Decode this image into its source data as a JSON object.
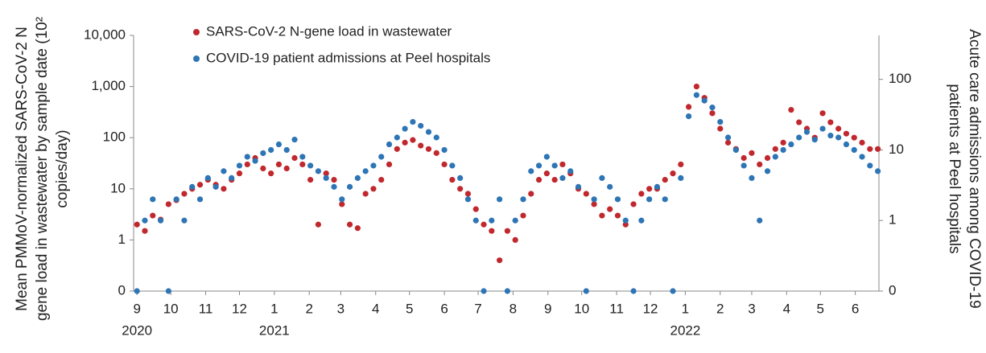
{
  "chart_data": {
    "type": "scatter",
    "ylabel": [
      "Mean PMMoV-normalized SARS-CoV-2 N",
      "gene load in wastewater by sample date (10²",
      "copies/day)"
    ],
    "y2label": [
      "Acute care admissions among COVID-19",
      "patients at Peel hospitals"
    ],
    "log_scale": true,
    "grid": false,
    "legend": "upper left",
    "xlim": [
      "2020-08-29",
      "2022-06-22"
    ],
    "xticks": [
      {
        "value": "2020-09-01",
        "label": "9"
      },
      {
        "value": "2020-10-01",
        "label": "10"
      },
      {
        "value": "2020-11-01",
        "label": "11"
      },
      {
        "value": "2020-12-01",
        "label": "12"
      },
      {
        "value": "2021-01-01",
        "label": "1"
      },
      {
        "value": "2021-02-01",
        "label": "2"
      },
      {
        "value": "2021-03-01",
        "label": "3"
      },
      {
        "value": "2021-04-01",
        "label": "4"
      },
      {
        "value": "2021-05-01",
        "label": "5"
      },
      {
        "value": "2021-06-01",
        "label": "6"
      },
      {
        "value": "2021-07-01",
        "label": "7"
      },
      {
        "value": "2021-08-01",
        "label": "8"
      },
      {
        "value": "2021-09-01",
        "label": "9"
      },
      {
        "value": "2021-10-01",
        "label": "10"
      },
      {
        "value": "2021-11-01",
        "label": "11"
      },
      {
        "value": "2021-12-01",
        "label": "12"
      },
      {
        "value": "2022-01-01",
        "label": "1"
      },
      {
        "value": "2022-02-01",
        "label": "2"
      },
      {
        "value": "2022-03-01",
        "label": "3"
      },
      {
        "value": "2022-04-01",
        "label": "4"
      },
      {
        "value": "2022-05-01",
        "label": "5"
      },
      {
        "value": "2022-06-01",
        "label": "6"
      }
    ],
    "year_labels": [
      {
        "value": "2020-09-01",
        "label": "2020"
      },
      {
        "value": "2021-01-01",
        "label": "2021"
      },
      {
        "value": "2022-01-01",
        "label": "2022"
      }
    ],
    "ylim": [
      0,
      10000
    ],
    "yticks": [
      0,
      1,
      10,
      100,
      {
        "value": 1000,
        "label": "1,000"
      },
      {
        "value": 10000,
        "label": "10,000"
      }
    ],
    "y2lim": [
      0,
      420
    ],
    "y2ticks": [
      0,
      1,
      10,
      100
    ],
    "x": [
      "2020-09-01",
      "2020-09-08",
      "2020-09-15",
      "2020-09-22",
      "2020-09-29",
      "2020-10-06",
      "2020-10-13",
      "2020-10-20",
      "2020-10-27",
      "2020-11-03",
      "2020-11-10",
      "2020-11-17",
      "2020-11-24",
      "2020-12-01",
      "2020-12-08",
      "2020-12-15",
      "2020-12-22",
      "2020-12-29",
      "2021-01-05",
      "2021-01-12",
      "2021-01-19",
      "2021-01-26",
      "2021-02-02",
      "2021-02-09",
      "2021-02-16",
      "2021-02-23",
      "2021-03-02",
      "2021-03-09",
      "2021-03-16",
      "2021-03-23",
      "2021-03-30",
      "2021-04-06",
      "2021-04-13",
      "2021-04-20",
      "2021-04-27",
      "2021-05-04",
      "2021-05-11",
      "2021-05-18",
      "2021-05-25",
      "2021-06-01",
      "2021-06-08",
      "2021-06-15",
      "2021-06-22",
      "2021-06-29",
      "2021-07-06",
      "2021-07-13",
      "2021-07-20",
      "2021-07-27",
      "2021-08-03",
      "2021-08-10",
      "2021-08-17",
      "2021-08-24",
      "2021-08-31",
      "2021-09-07",
      "2021-09-14",
      "2021-09-21",
      "2021-09-28",
      "2021-10-05",
      "2021-10-12",
      "2021-10-19",
      "2021-10-26",
      "2021-11-02",
      "2021-11-09",
      "2021-11-16",
      "2021-11-23",
      "2021-11-30",
      "2021-12-07",
      "2021-12-14",
      "2021-12-21",
      "2021-12-28",
      "2022-01-04",
      "2022-01-11",
      "2022-01-18",
      "2022-01-25",
      "2022-02-01",
      "2022-02-08",
      "2022-02-15",
      "2022-02-22",
      "2022-03-01",
      "2022-03-08",
      "2022-03-15",
      "2022-03-22",
      "2022-03-29",
      "2022-04-05",
      "2022-04-12",
      "2022-04-19",
      "2022-04-26",
      "2022-05-03",
      "2022-05-10",
      "2022-05-17",
      "2022-05-24",
      "2022-05-31",
      "2022-06-07",
      "2022-06-14",
      "2022-06-21"
    ],
    "series": [
      {
        "name": "SARS-CoV-2 N-gene load in wastewater",
        "color": "#c0282d",
        "values": [
          2,
          1.5,
          3,
          2.5,
          5,
          6,
          8,
          10,
          12,
          15,
          12,
          10,
          15,
          20,
          30,
          40,
          25,
          20,
          30,
          25,
          40,
          30,
          15,
          2,
          20,
          15,
          5,
          2,
          1.7,
          8,
          10,
          15,
          30,
          60,
          80,
          90,
          70,
          60,
          50,
          30,
          15,
          10,
          8,
          4,
          2,
          1.5,
          0.4,
          1.5,
          1,
          3,
          8,
          15,
          20,
          15,
          30,
          20,
          10,
          8,
          5,
          3,
          4,
          3,
          2,
          5,
          8,
          10,
          10,
          15,
          20,
          30,
          400,
          1000,
          600,
          300,
          150,
          80,
          60,
          40,
          50,
          30,
          40,
          60,
          80,
          350,
          200,
          150,
          100,
          300,
          200,
          150,
          120,
          100,
          80,
          60,
          60
        ]
      },
      {
        "name": "COVID-19 patient admissions at Peel hospitals",
        "color": "#2e75b6",
        "axis": "y2",
        "values": [
          0,
          1,
          2,
          1,
          0,
          2,
          1,
          3,
          2,
          4,
          3,
          5,
          4,
          6,
          8,
          7,
          9,
          10,
          12,
          10,
          14,
          8,
          6,
          5,
          4,
          3,
          2,
          3,
          4,
          5,
          6,
          8,
          12,
          15,
          20,
          25,
          22,
          18,
          15,
          10,
          6,
          4,
          2,
          1,
          0,
          1,
          2,
          0,
          1,
          2,
          5,
          6,
          8,
          6,
          4,
          5,
          3,
          0,
          2,
          4,
          3,
          2,
          1,
          0,
          1,
          2,
          3,
          2,
          0,
          4,
          30,
          60,
          50,
          40,
          25,
          15,
          10,
          6,
          4,
          1,
          5,
          8,
          10,
          12,
          15,
          18,
          14,
          20,
          16,
          15,
          12,
          10,
          8,
          6,
          5
        ]
      }
    ]
  }
}
